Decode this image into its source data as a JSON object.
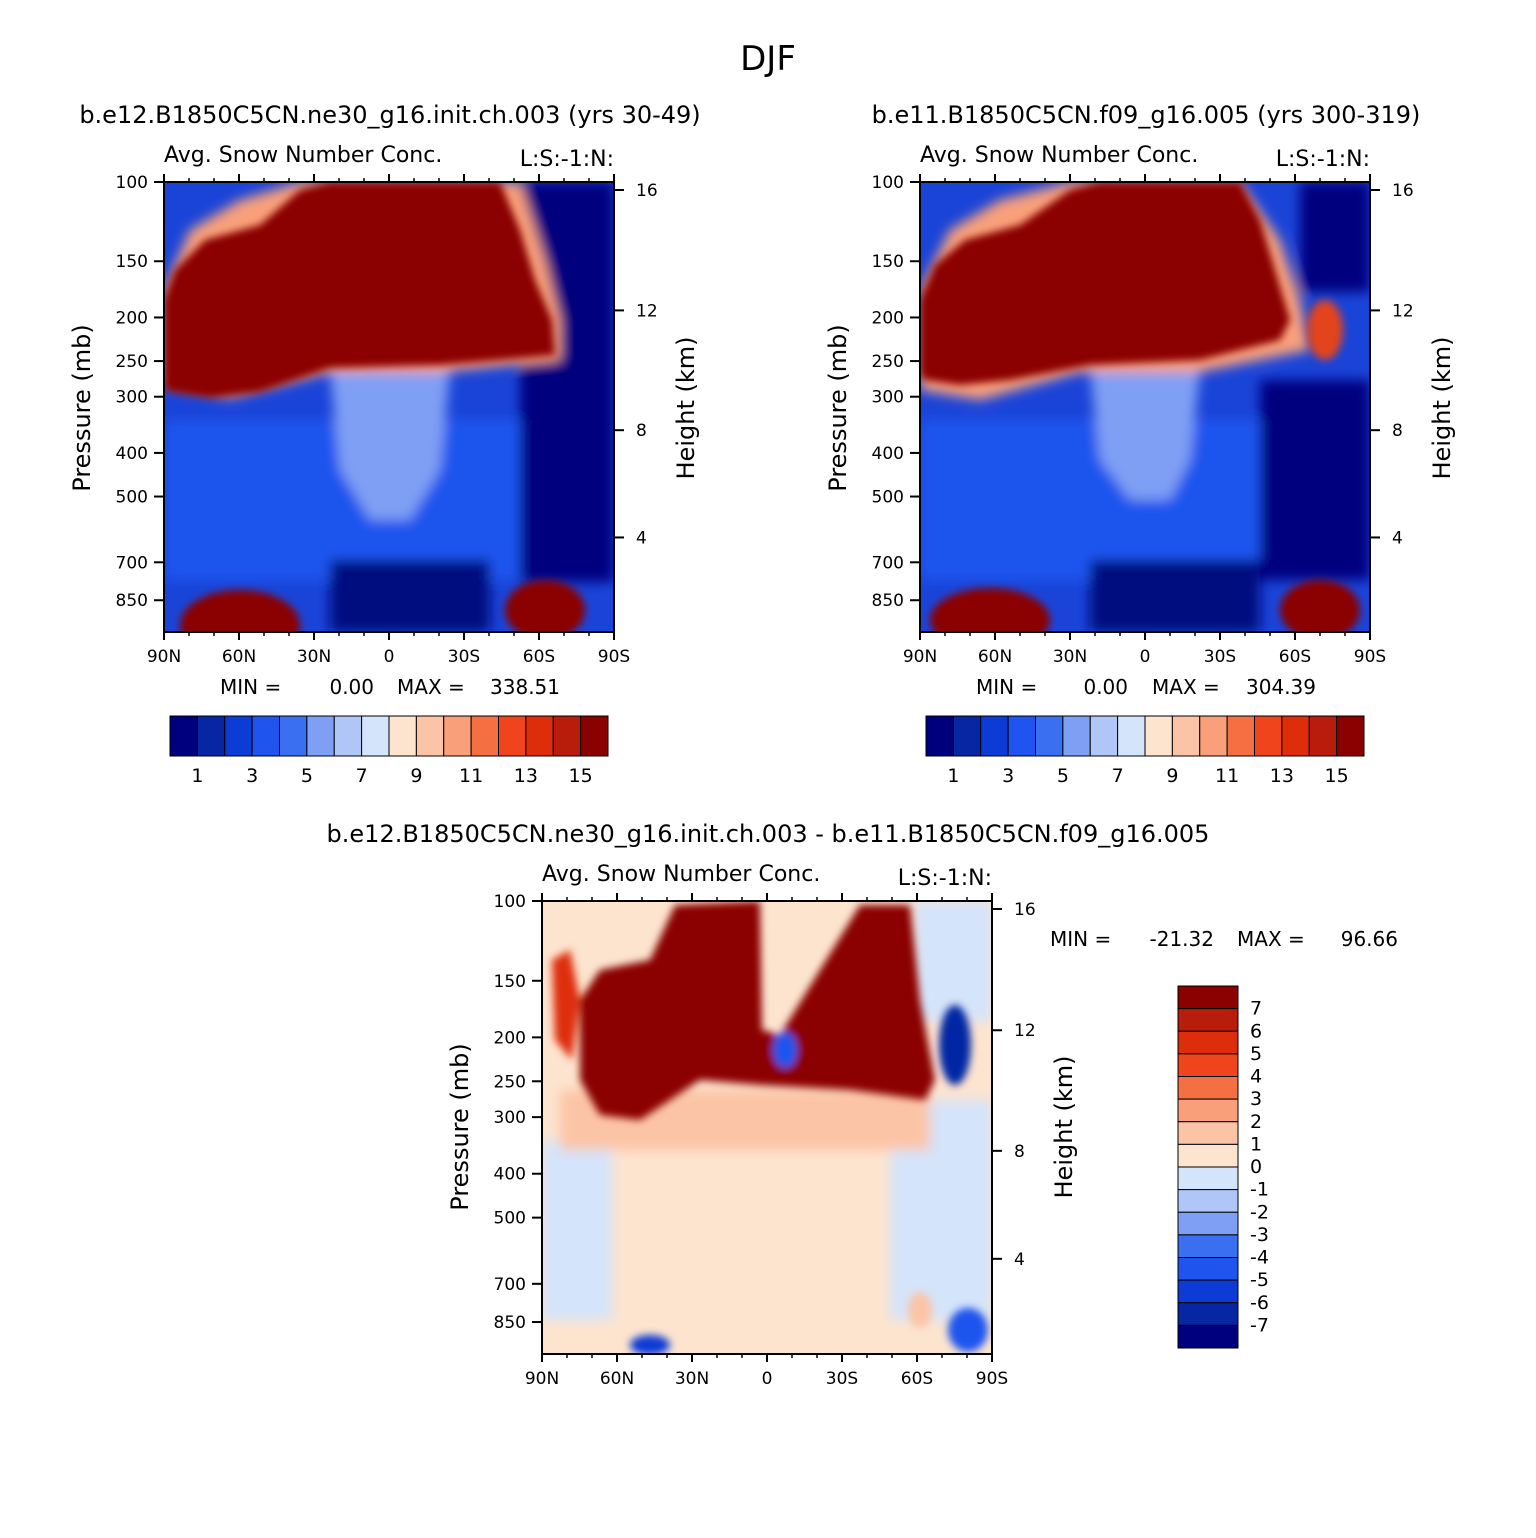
{
  "figure": {
    "season": "DJF"
  },
  "colors": {
    "nonneg_palette": [
      "#00007f",
      "#0626a4",
      "#0d3bd6",
      "#1f55ee",
      "#3a6ff2",
      "#7f9ff4",
      "#b0c6f7",
      "#d4e4fa",
      "#fde4cf",
      "#fcc4a6",
      "#f9a07a",
      "#f46f42",
      "#f0441d",
      "#de2d0b",
      "#b81d0b",
      "#8b0000"
    ],
    "diff_palette": [
      "#00007f",
      "#0626a4",
      "#0d3bd6",
      "#1f55ee",
      "#3a6ff2",
      "#7f9ff4",
      "#b0c6f7",
      "#d4e4fa",
      "#fde4cf",
      "#fcc4a6",
      "#f9a07a",
      "#f46f42",
      "#f0441d",
      "#de2d0b",
      "#b81d0b",
      "#8b0000"
    ]
  },
  "chart_data": [
    {
      "type": "heatmap",
      "panel": "top-left",
      "run_title": "b.e12.B1850C5CN.ne30_g16.init.ch.003 (yrs 30-49)",
      "variable_title": "Avg. Snow Number Conc.",
      "variable_tag": "L:S:-1:N:",
      "xlabel": "",
      "ylabel": "Pressure (mb)",
      "ylabel_right": "Height (km)",
      "x_ticks": [
        "90N",
        "60N",
        "30N",
        "0",
        "30S",
        "60S",
        "90S"
      ],
      "y_ticks": [
        "100",
        "150",
        "200",
        "250",
        "300",
        "400",
        "500",
        "700",
        "850"
      ],
      "y_ticks_right": [
        "16",
        "12",
        "8",
        "4"
      ],
      "ylim": [
        100,
        1000
      ],
      "min_label": "MIN =",
      "min_value": "0.00",
      "max_label": "MAX =",
      "max_value": "338.51",
      "colorbar": {
        "orientation": "horizontal",
        "levels": 16,
        "tick_labels": [
          "1",
          "3",
          "5",
          "7",
          "9",
          "11",
          "13",
          "15"
        ]
      }
    },
    {
      "type": "heatmap",
      "panel": "top-right",
      "run_title": "b.e11.B1850C5CN.f09_g16.005 (yrs 300-319)",
      "variable_title": "Avg. Snow Number Conc.",
      "variable_tag": "L:S:-1:N:",
      "xlabel": "",
      "ylabel": "Pressure (mb)",
      "ylabel_right": "Height (km)",
      "x_ticks": [
        "90N",
        "60N",
        "30N",
        "0",
        "30S",
        "60S",
        "90S"
      ],
      "y_ticks": [
        "100",
        "150",
        "200",
        "250",
        "300",
        "400",
        "500",
        "700",
        "850"
      ],
      "y_ticks_right": [
        "16",
        "12",
        "8",
        "4"
      ],
      "ylim": [
        100,
        1000
      ],
      "min_label": "MIN =",
      "min_value": "0.00",
      "max_label": "MAX =",
      "max_value": "304.39",
      "colorbar": {
        "orientation": "horizontal",
        "levels": 16,
        "tick_labels": [
          "1",
          "3",
          "5",
          "7",
          "9",
          "11",
          "13",
          "15"
        ]
      }
    },
    {
      "type": "heatmap",
      "panel": "bottom-difference",
      "run_title": "b.e12.B1850C5CN.ne30_g16.init.ch.003 - b.e11.B1850C5CN.f09_g16.005",
      "variable_title": "Avg. Snow Number Conc.",
      "variable_tag": "L:S:-1:N:",
      "xlabel": "",
      "ylabel": "Pressure (mb)",
      "ylabel_right": "Height (km)",
      "x_ticks": [
        "90N",
        "60N",
        "30N",
        "0",
        "30S",
        "60S",
        "90S"
      ],
      "y_ticks": [
        "100",
        "150",
        "200",
        "250",
        "300",
        "400",
        "500",
        "700",
        "850"
      ],
      "y_ticks_right": [
        "16",
        "12",
        "8",
        "4"
      ],
      "ylim": [
        100,
        1000
      ],
      "min_label": "MIN =",
      "min_value": "-21.32",
      "max_label": "MAX =",
      "max_value": "96.66",
      "colorbar": {
        "orientation": "vertical",
        "levels": 16,
        "tick_labels": [
          "7",
          "6",
          "5",
          "4",
          "3",
          "2",
          "1",
          "0",
          "-1",
          "-2",
          "-3",
          "-4",
          "-5",
          "-6",
          "-7"
        ]
      }
    }
  ]
}
